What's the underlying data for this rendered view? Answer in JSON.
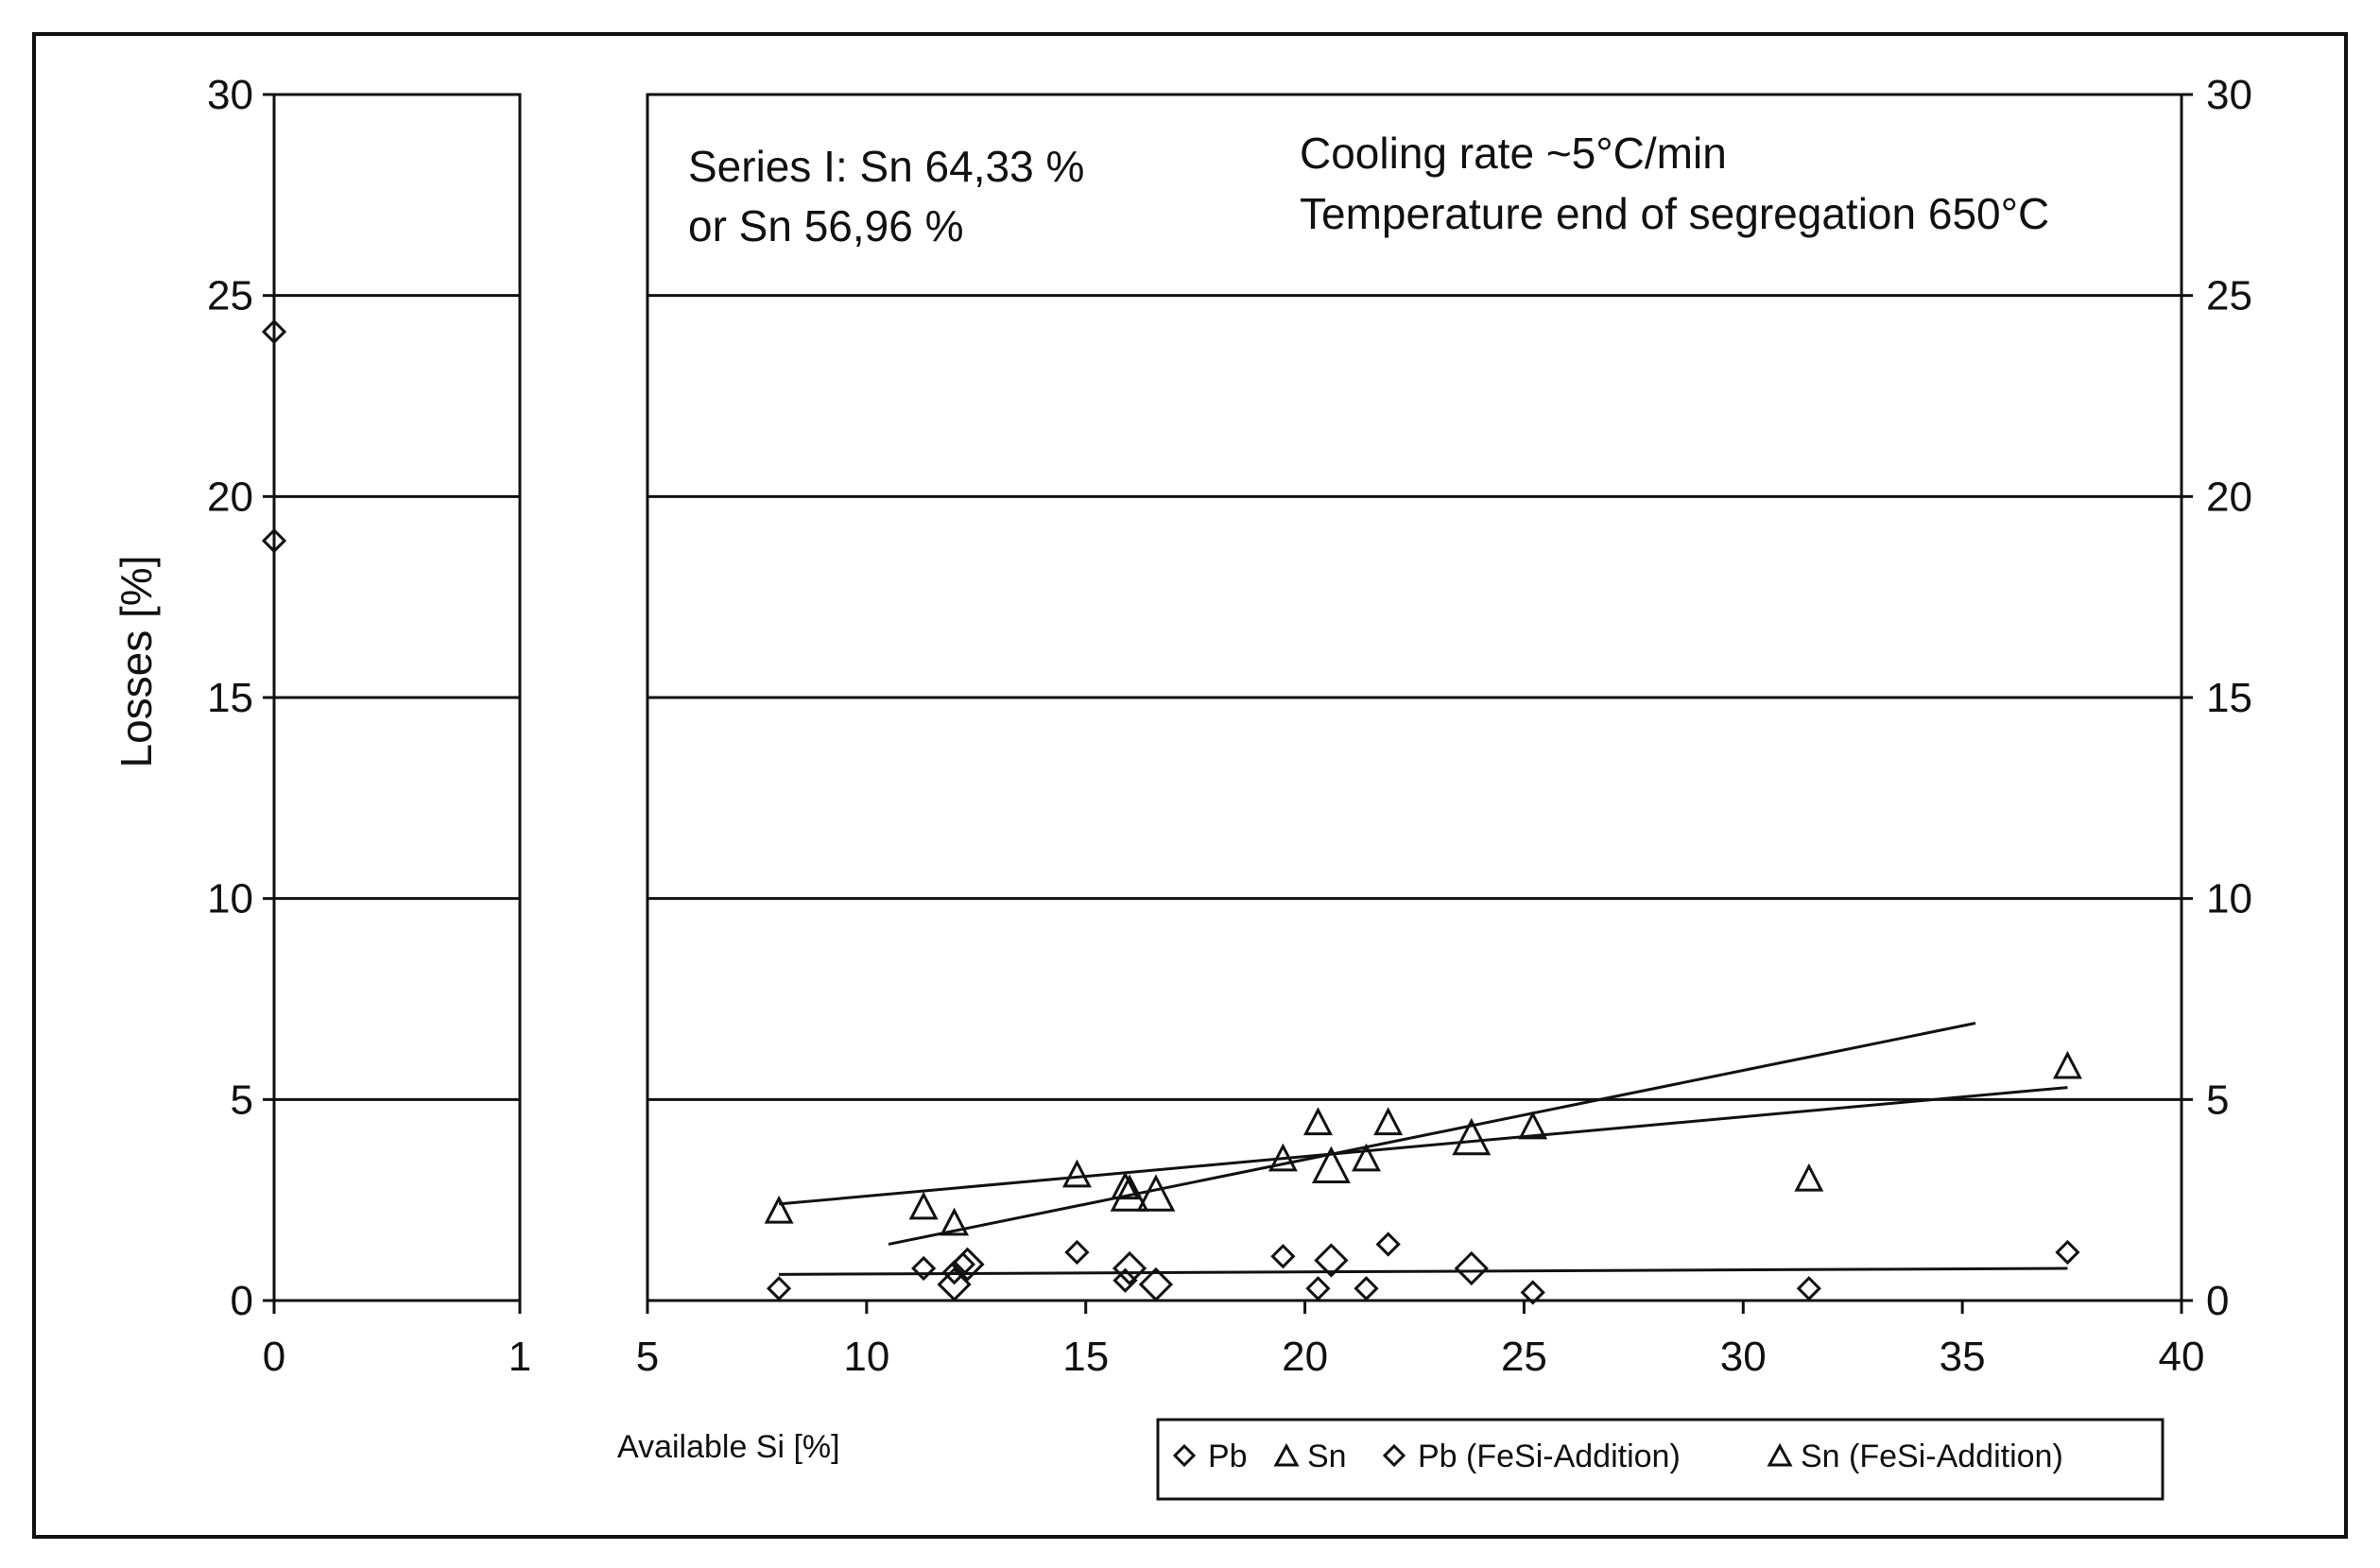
{
  "chart_data": {
    "type": "scatter",
    "ylabel": "Losses [%]",
    "xlabel": "Available Si [%]",
    "ylim": [
      0,
      30
    ],
    "yticks": [
      "0",
      "5",
      "10",
      "15",
      "20",
      "25",
      "30"
    ],
    "left_panel": {
      "xlim": [
        0,
        1
      ],
      "xticks": [
        "0",
        "1"
      ]
    },
    "main_panel": {
      "xlim": [
        5,
        40
      ],
      "xticks": [
        "5",
        "10",
        "15",
        "20",
        "25",
        "30",
        "35",
        "40"
      ]
    },
    "annotations": {
      "series_line1": "Series I: Sn 64,33 %",
      "series_line2": "or Sn 56,96 %",
      "cooling_rate": "Cooling rate ~5°C/min",
      "temperature": "Temperature end of segregation 650°C"
    },
    "legend": {
      "pb": "Pb",
      "sn": "Sn",
      "pb_fesi": "Pb (FeSi-Addition)",
      "sn_fesi": "Sn (FeSi-Addition)"
    },
    "series": [
      {
        "name": "Pb",
        "marker": "diamond",
        "left_points": [
          {
            "x": 0,
            "y": 24.1
          },
          {
            "x": 0,
            "y": 18.9
          }
        ],
        "points": [
          {
            "x": 8.0,
            "y": 0.3
          },
          {
            "x": 11.3,
            "y": 0.8
          },
          {
            "x": 12.0,
            "y": 0.7
          },
          {
            "x": 12.2,
            "y": 0.9
          },
          {
            "x": 14.8,
            "y": 1.2
          },
          {
            "x": 15.9,
            "y": 0.5
          },
          {
            "x": 19.5,
            "y": 1.1
          },
          {
            "x": 20.3,
            "y": 0.3
          },
          {
            "x": 21.4,
            "y": 0.3
          },
          {
            "x": 21.9,
            "y": 1.4
          },
          {
            "x": 25.2,
            "y": 0.2
          },
          {
            "x": 31.5,
            "y": 0.3
          },
          {
            "x": 37.4,
            "y": 1.2
          }
        ]
      },
      {
        "name": "Sn",
        "marker": "triangle",
        "points": [
          {
            "x": 8.0,
            "y": 2.2
          },
          {
            "x": 11.3,
            "y": 2.3
          },
          {
            "x": 12.0,
            "y": 1.9
          },
          {
            "x": 14.8,
            "y": 3.1
          },
          {
            "x": 15.9,
            "y": 2.8
          },
          {
            "x": 19.5,
            "y": 3.5
          },
          {
            "x": 20.3,
            "y": 4.4
          },
          {
            "x": 21.4,
            "y": 3.5
          },
          {
            "x": 21.9,
            "y": 4.4
          },
          {
            "x": 25.2,
            "y": 4.3
          },
          {
            "x": 31.5,
            "y": 3.0
          },
          {
            "x": 37.4,
            "y": 5.8
          }
        ]
      },
      {
        "name": "Pb (FeSi-Addition)",
        "marker": "diamond-large",
        "points": [
          {
            "x": 12.0,
            "y": 0.4
          },
          {
            "x": 12.3,
            "y": 0.9
          },
          {
            "x": 16.0,
            "y": 0.8
          },
          {
            "x": 16.6,
            "y": 0.4
          },
          {
            "x": 20.6,
            "y": 1.0
          },
          {
            "x": 23.8,
            "y": 0.8
          }
        ]
      },
      {
        "name": "Sn (FeSi-Addition)",
        "marker": "triangle-large",
        "points": [
          {
            "x": 16.0,
            "y": 2.6
          },
          {
            "x": 16.6,
            "y": 2.6
          },
          {
            "x": 20.6,
            "y": 3.3
          },
          {
            "x": 23.8,
            "y": 4.0
          }
        ]
      }
    ],
    "trendlines": [
      {
        "x": [
          8.0,
          37.4
        ],
        "y": [
          2.4,
          5.3
        ]
      },
      {
        "x": [
          10.5,
          35.3
        ],
        "y": [
          1.4,
          6.9
        ]
      },
      {
        "x": [
          8.0,
          37.4
        ],
        "y": [
          0.65,
          0.8
        ]
      }
    ]
  }
}
